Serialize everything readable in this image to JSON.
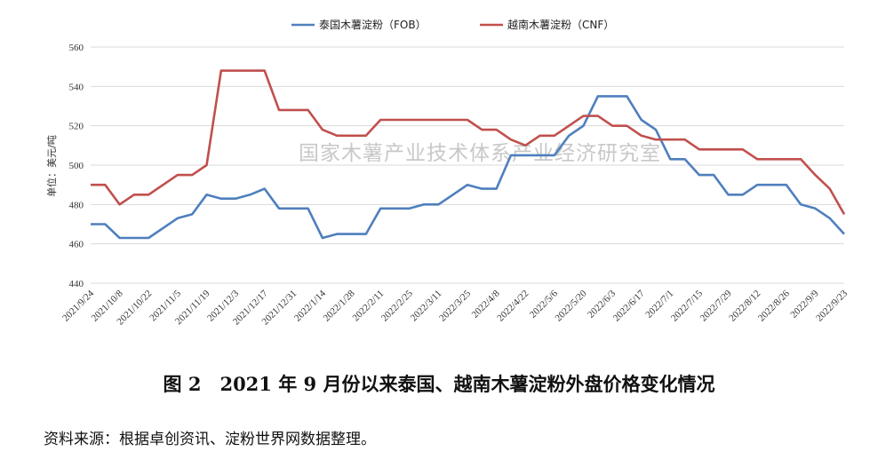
{
  "caption": "图 2　2021 年 9 月份以来泰国、越南木薯淀粉外盘价格变化情况",
  "source": "资料来源：根据卓创资讯、淀粉世界网数据整理。",
  "watermark": "国家木薯产业技术体系产业经济研究室",
  "chart_data": {
    "type": "line",
    "ylabel": "单位：美元/吨",
    "ylim": [
      440,
      560
    ],
    "yticks": [
      "440",
      "460",
      "480",
      "500",
      "520",
      "540",
      "560"
    ],
    "grid": "horizontal",
    "legend_position": "top-center",
    "x": [
      "2021/9/24",
      "2021/10/1",
      "2021/10/8",
      "2021/10/15",
      "2021/10/22",
      "2021/10/29",
      "2021/11/5",
      "2021/11/12",
      "2021/11/19",
      "2021/11/26",
      "2021/12/3",
      "2021/12/10",
      "2021/12/17",
      "2021/12/24",
      "2021/12/31",
      "2022/1/7",
      "2022/1/14",
      "2022/1/21",
      "2022/1/28",
      "2022/2/4",
      "2022/2/11",
      "2022/2/18",
      "2022/2/25",
      "2022/3/4",
      "2022/3/11",
      "2022/3/18",
      "2022/3/25",
      "2022/4/1",
      "2022/4/8",
      "2022/4/15",
      "2022/4/22",
      "2022/4/29",
      "2022/5/6",
      "2022/5/13",
      "2022/5/20",
      "2022/5/27",
      "2022/6/3",
      "2022/6/10",
      "2022/6/17",
      "2022/6/24",
      "2022/7/1",
      "2022/7/8",
      "2022/7/15",
      "2022/7/22",
      "2022/7/29",
      "2022/8/5",
      "2022/8/12",
      "2022/8/19",
      "2022/8/26",
      "2022/9/2",
      "2022/9/9",
      "2022/9/16",
      "2022/9/23"
    ],
    "xticks": [
      "2021/9/24",
      "2021/10/8",
      "2021/10/22",
      "2021/11/5",
      "2021/11/19",
      "2021/12/3",
      "2021/12/17",
      "2021/12/31",
      "2022/1/14",
      "2022/1/28",
      "2022/2/11",
      "2022/2/25",
      "2022/3/11",
      "2022/3/25",
      "2022/4/8",
      "2022/4/22",
      "2022/5/6",
      "2022/5/20",
      "2022/6/3",
      "2022/6/17",
      "2022/7/1",
      "2022/7/15",
      "2022/7/29",
      "2022/8/12",
      "2022/8/26",
      "2022/9/9",
      "2022/9/23"
    ],
    "series": [
      {
        "name": "泰国木薯淀粉（FOB）",
        "color": "#4f7fbd",
        "values": [
          470,
          470,
          463,
          463,
          463,
          468,
          473,
          475,
          485,
          483,
          483,
          485,
          488,
          478,
          478,
          478,
          463,
          465,
          465,
          465,
          478,
          478,
          478,
          480,
          480,
          485,
          490,
          488,
          488,
          505,
          505,
          505,
          505,
          515,
          520,
          535,
          535,
          535,
          523,
          518,
          503,
          503,
          495,
          495,
          485,
          485,
          490,
          490,
          490,
          480,
          478,
          473,
          465
        ]
      },
      {
        "name": "越南木薯淀粉（CNF）",
        "color": "#c0504d",
        "values": [
          490,
          490,
          480,
          485,
          485,
          490,
          495,
          495,
          500,
          548,
          548,
          548,
          548,
          528,
          528,
          528,
          518,
          515,
          515,
          515,
          523,
          523,
          523,
          523,
          523,
          523,
          523,
          518,
          518,
          513,
          510,
          515,
          515,
          520,
          525,
          525,
          520,
          520,
          515,
          513,
          513,
          513,
          508,
          508,
          508,
          508,
          503,
          503,
          503,
          503,
          495,
          488,
          475
        ]
      }
    ]
  }
}
